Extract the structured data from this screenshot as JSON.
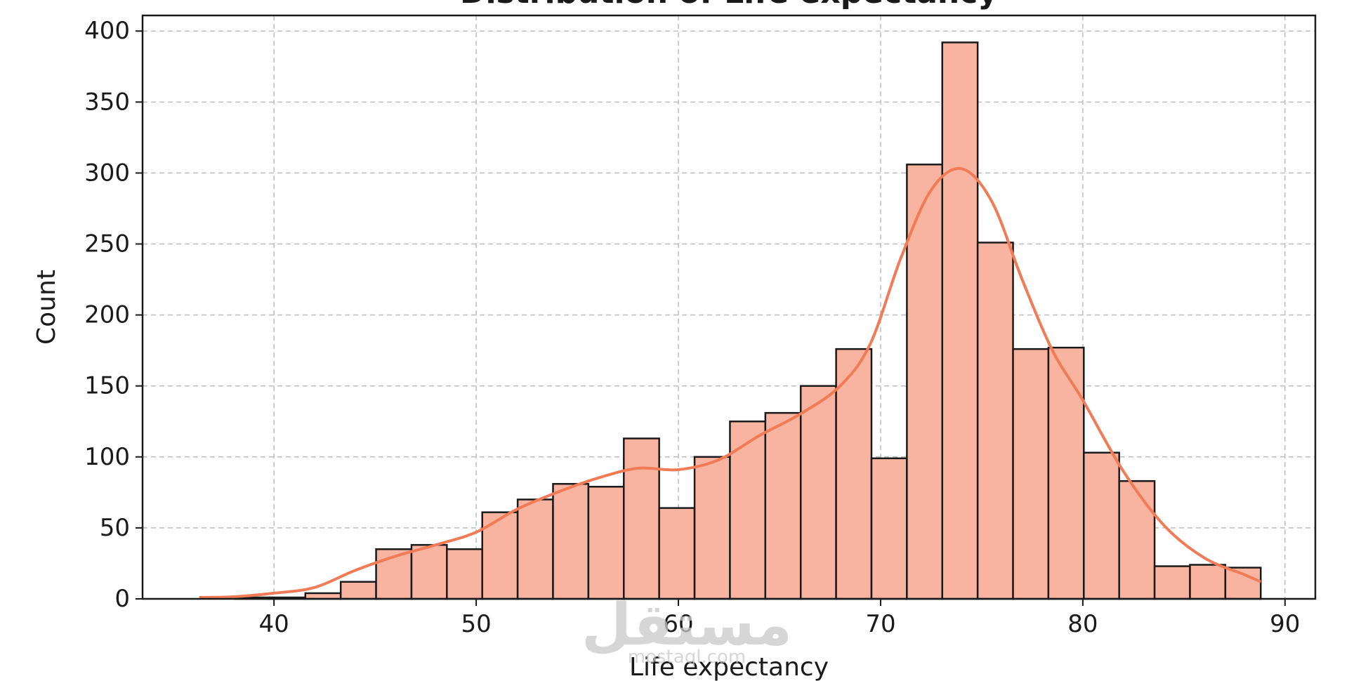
{
  "chart_data": {
    "type": "bar",
    "title": "Distribution of Life expectancy",
    "xlabel": "Life expectancy",
    "ylabel": "Count",
    "xlim": [
      33.5,
      91.5
    ],
    "ylim": [
      0,
      411
    ],
    "xticks": [
      40,
      50,
      60,
      70,
      80,
      90
    ],
    "yticks": [
      0,
      50,
      100,
      150,
      200,
      250,
      300,
      350,
      400
    ],
    "grid": true,
    "bin_edges": [
      36.3,
      38.05,
      39.8,
      41.55,
      43.3,
      45.05,
      46.8,
      48.55,
      50.3,
      52.05,
      53.8,
      55.55,
      57.3,
      59.05,
      60.8,
      62.55,
      64.3,
      66.05,
      67.8,
      69.55,
      71.3,
      73.05,
      74.8,
      76.55,
      78.3,
      80.05,
      81.8,
      83.55,
      85.3,
      87.05,
      88.8
    ],
    "counts": [
      0,
      1,
      1,
      4,
      12,
      35,
      38,
      35,
      61,
      70,
      81,
      79,
      113,
      64,
      100,
      125,
      131,
      150,
      176,
      99,
      306,
      392,
      251,
      176,
      177,
      103,
      83,
      23,
      24,
      22
    ],
    "kde_x": [
      36.3,
      38,
      40,
      42,
      44,
      46,
      48,
      50,
      52,
      54,
      56,
      58,
      60,
      62,
      64,
      66,
      68,
      69.5,
      71,
      72.5,
      74,
      75.5,
      77,
      78.5,
      80,
      82,
      84,
      86,
      88,
      88.8
    ],
    "kde_y": [
      1,
      1.5,
      4,
      8,
      20,
      30,
      38,
      47,
      63,
      75,
      85,
      92,
      91,
      98,
      115,
      130,
      150,
      180,
      240,
      288,
      303,
      280,
      225,
      175,
      140,
      90,
      52,
      29,
      17,
      12
    ],
    "bar_color": "#f8b4a0",
    "bar_edge_color": "#1a1a1a",
    "kde_color": "#f07b56",
    "grid_color": "#bdbdbd"
  },
  "watermark": {
    "logo_text": "مستقل",
    "domain_text": "mostaql.com"
  }
}
